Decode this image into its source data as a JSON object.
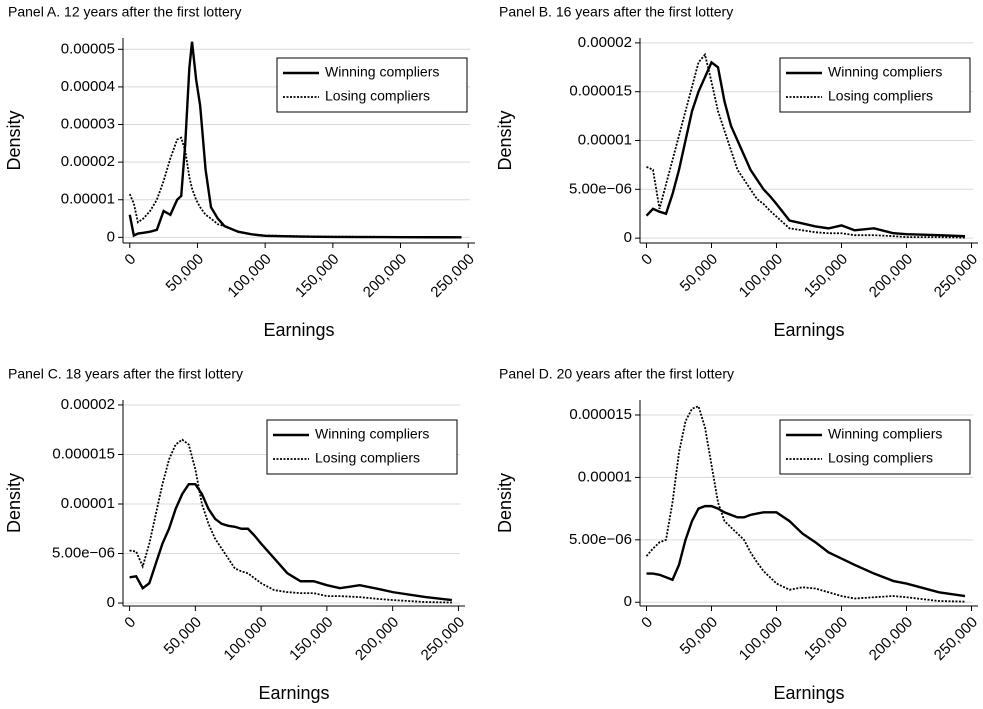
{
  "chart_data": [
    {
      "type": "line",
      "title": "Panel A. 12 years after the first lottery",
      "x_label": "Earnings",
      "y_label": "Density",
      "x": [
        0,
        3000,
        6000,
        10000,
        15000,
        20000,
        25000,
        30000,
        35000,
        38000,
        41000,
        44000,
        46000,
        49000,
        52000,
        56000,
        60000,
        65000,
        70000,
        80000,
        90000,
        100000,
        125000,
        150000,
        175000,
        200000,
        225000,
        245000
      ],
      "series": [
        {
          "name": "Winning compliers",
          "color": "#000000",
          "style": "solid",
          "values": [
            6e-06,
            5e-07,
            1e-06,
            1.2e-06,
            1.5e-06,
            2e-06,
            7e-06,
            6e-06,
            1e-05,
            1.1e-05,
            2.5e-05,
            4.5e-05,
            5.2e-05,
            4.2e-05,
            3.5e-05,
            1.8e-05,
            8e-06,
            5e-06,
            3e-06,
            1.5e-06,
            8e-07,
            4e-07,
            2e-07,
            1e-07,
            8e-08,
            5e-08,
            3e-08,
            2e-08
          ]
        },
        {
          "name": "Losing compliers",
          "color": "#000000",
          "style": "dotted",
          "values": [
            1.15e-05,
            9e-06,
            4e-06,
            5e-06,
            7e-06,
            1e-05,
            1.5e-05,
            2.1e-05,
            2.6e-05,
            2.65e-05,
            2.3e-05,
            1.6e-05,
            1.3e-05,
            1e-05,
            8e-06,
            6e-06,
            5e-06,
            3.5e-06,
            3e-06,
            1.5e-06,
            8e-07,
            5e-07,
            3e-07,
            2e-07,
            1.5e-07,
            1e-07,
            8e-08,
            5e-08
          ]
        }
      ],
      "xlim": [
        -5000,
        255000
      ],
      "xticks": [
        0,
        {
          "value": 50000,
          "label": "50,000"
        },
        {
          "value": 100000,
          "label": "100,000"
        },
        {
          "value": 150000,
          "label": "150,000"
        },
        {
          "value": 200000,
          "label": "200,000"
        },
        {
          "value": 250000,
          "label": "250,000"
        }
      ],
      "ylim": [
        -1.5e-06,
        5.3e-05
      ],
      "yticks": [
        0,
        1e-05,
        2e-05,
        3e-05,
        4e-05,
        5e-05
      ],
      "grid": true,
      "legend": "upper right"
    },
    {
      "type": "line",
      "title": "Panel B. 16 years after the first lottery",
      "x_label": "Earnings",
      "y_label": "Density",
      "x": [
        0,
        5000,
        10000,
        15000,
        20000,
        25000,
        30000,
        35000,
        40000,
        45000,
        50000,
        55000,
        60000,
        65000,
        70000,
        75000,
        80000,
        85000,
        90000,
        95000,
        100000,
        110000,
        120000,
        130000,
        140000,
        150000,
        160000,
        175000,
        190000,
        200000,
        225000,
        245000
      ],
      "series": [
        {
          "name": "Winning compliers",
          "color": "#000000",
          "style": "solid",
          "values": [
            2.3e-06,
            3e-06,
            2.7e-06,
            2.5e-06,
            4.5e-06,
            7e-06,
            1e-05,
            1.3e-05,
            1.5e-05,
            1.65e-05,
            1.8e-05,
            1.75e-05,
            1.4e-05,
            1.15e-05,
            1e-05,
            8.5e-06,
            7e-06,
            6e-06,
            5e-06,
            4.3e-06,
            3.5e-06,
            1.8e-06,
            1.5e-06,
            1.2e-06,
            1e-06,
            1.3e-06,
            8e-07,
            1e-06,
            5e-07,
            4e-07,
            3e-07,
            2e-07
          ]
        },
        {
          "name": "Losing compliers",
          "color": "#000000",
          "style": "dotted",
          "values": [
            7.3e-06,
            7e-06,
            3e-06,
            5.5e-06,
            8e-06,
            1.05e-05,
            1.3e-05,
            1.55e-05,
            1.8e-05,
            1.88e-05,
            1.6e-05,
            1.3e-05,
            1.1e-05,
            9e-06,
            7e-06,
            6e-06,
            5e-06,
            4e-06,
            3.5e-06,
            2.8e-06,
            2.2e-06,
            1e-06,
            8e-07,
            6e-07,
            5e-07,
            5e-07,
            3e-07,
            3e-07,
            2e-07,
            1e-07,
            1e-07,
            5e-08
          ]
        }
      ],
      "xlim": [
        -5000,
        255000
      ],
      "xticks": [
        0,
        {
          "value": 50000,
          "label": "50,000"
        },
        {
          "value": 100000,
          "label": "100,000"
        },
        {
          "value": 150000,
          "label": "150,000"
        },
        {
          "value": 200000,
          "label": "200,000"
        },
        {
          "value": 250000,
          "label": "250,000"
        }
      ],
      "ylim": [
        -5e-07,
        2.05e-05
      ],
      "yticks": [
        0,
        {
          "value": 5e-06,
          "label": "5.00e−06"
        },
        1e-05,
        1.5e-05,
        2e-05
      ],
      "grid": true,
      "legend": "upper right"
    },
    {
      "type": "line",
      "title": "Panel C. 18 years after the first lottery",
      "x_label": "Earnings",
      "y_label": "Density",
      "x": [
        0,
        5000,
        10000,
        15000,
        20000,
        25000,
        30000,
        35000,
        40000,
        45000,
        50000,
        55000,
        60000,
        65000,
        70000,
        75000,
        80000,
        85000,
        90000,
        95000,
        100000,
        110000,
        120000,
        130000,
        140000,
        150000,
        160000,
        175000,
        190000,
        200000,
        225000,
        245000
      ],
      "series": [
        {
          "name": "Winning compliers",
          "color": "#000000",
          "style": "solid",
          "values": [
            2.6e-06,
            2.7e-06,
            1.5e-06,
            2e-06,
            4e-06,
            6e-06,
            7.5e-06,
            9.5e-06,
            1.1e-05,
            1.2e-05,
            1.2e-05,
            1.1e-05,
            9.5e-06,
            8.5e-06,
            8e-06,
            7.8e-06,
            7.7e-06,
            7.5e-06,
            7.5e-06,
            6.8e-06,
            6e-06,
            4.5e-06,
            3e-06,
            2.2e-06,
            2.2e-06,
            1.8e-06,
            1.5e-06,
            1.8e-06,
            1.4e-06,
            1.1e-06,
            6e-07,
            3e-07
          ]
        },
        {
          "name": "Losing compliers",
          "color": "#000000",
          "style": "dotted",
          "values": [
            5.3e-06,
            5.2e-06,
            3.7e-06,
            6e-06,
            9e-06,
            1.2e-05,
            1.45e-05,
            1.6e-05,
            1.65e-05,
            1.6e-05,
            1.35e-05,
            1e-05,
            8e-06,
            6.5e-06,
            5.5e-06,
            4.5e-06,
            3.5e-06,
            3.2e-06,
            3e-06,
            2.5e-06,
            2e-06,
            1.3e-06,
            1.1e-06,
            1e-06,
            1e-06,
            7e-07,
            7e-07,
            6e-07,
            4e-07,
            3e-07,
            1e-07,
            5e-08
          ]
        }
      ],
      "xlim": [
        -5000,
        255000
      ],
      "xticks": [
        0,
        {
          "value": 50000,
          "label": "50,000"
        },
        {
          "value": 100000,
          "label": "100,000"
        },
        {
          "value": 150000,
          "label": "150,000"
        },
        {
          "value": 200000,
          "label": "200,000"
        },
        {
          "value": 250000,
          "label": "250,000"
        }
      ],
      "ylim": [
        -3e-07,
        2.05e-05
      ],
      "yticks": [
        0,
        {
          "value": 5e-06,
          "label": "5.00e−06"
        },
        1e-05,
        1.5e-05,
        2e-05
      ],
      "grid": true,
      "legend": "upper right"
    },
    {
      "type": "line",
      "title": "Panel D. 20 years after the first lottery",
      "x_label": "Earnings",
      "y_label": "Density",
      "x": [
        0,
        5000,
        10000,
        15000,
        20000,
        25000,
        30000,
        35000,
        40000,
        45000,
        50000,
        55000,
        60000,
        65000,
        70000,
        75000,
        80000,
        85000,
        90000,
        95000,
        100000,
        110000,
        120000,
        130000,
        140000,
        150000,
        160000,
        175000,
        190000,
        200000,
        225000,
        245000
      ],
      "series": [
        {
          "name": "Winning compliers",
          "color": "#000000",
          "style": "solid",
          "values": [
            2.3e-06,
            2.3e-06,
            2.2e-06,
            2e-06,
            1.8e-06,
            3e-06,
            5e-06,
            6.5e-06,
            7.5e-06,
            7.7e-06,
            7.7e-06,
            7.5e-06,
            7.2e-06,
            7e-06,
            6.8e-06,
            6.8e-06,
            7e-06,
            7.1e-06,
            7.2e-06,
            7.2e-06,
            7.2e-06,
            6.5e-06,
            5.5e-06,
            4.8e-06,
            4e-06,
            3.5e-06,
            3e-06,
            2.3e-06,
            1.7e-06,
            1.5e-06,
            8e-07,
            5e-07
          ]
        },
        {
          "name": "Losing compliers",
          "color": "#000000",
          "style": "dotted",
          "values": [
            3.7e-06,
            4.3e-06,
            4.8e-06,
            5e-06,
            8e-06,
            1.2e-05,
            1.45e-05,
            1.55e-05,
            1.57e-05,
            1.4e-05,
            1.1e-05,
            8e-06,
            6.5e-06,
            6e-06,
            5.5e-06,
            5e-06,
            4e-06,
            3.2e-06,
            2.5e-06,
            2e-06,
            1.5e-06,
            1e-06,
            1.2e-06,
            1.1e-06,
            8e-07,
            5e-07,
            3e-07,
            4e-07,
            5e-07,
            4e-07,
            1e-07,
            5e-08
          ]
        }
      ],
      "xlim": [
        -5000,
        255000
      ],
      "xticks": [
        0,
        {
          "value": 50000,
          "label": "50,000"
        },
        {
          "value": 100000,
          "label": "100,000"
        },
        {
          "value": 150000,
          "label": "150,000"
        },
        {
          "value": 200000,
          "label": "200,000"
        },
        {
          "value": 250000,
          "label": "250,000"
        }
      ],
      "ylim": [
        -3e-07,
        1.62e-05
      ],
      "yticks": [
        0,
        {
          "value": 5e-06,
          "label": "5.00e−06"
        },
        1e-05,
        1.5e-05
      ],
      "grid": true,
      "legend": "upper right"
    }
  ]
}
